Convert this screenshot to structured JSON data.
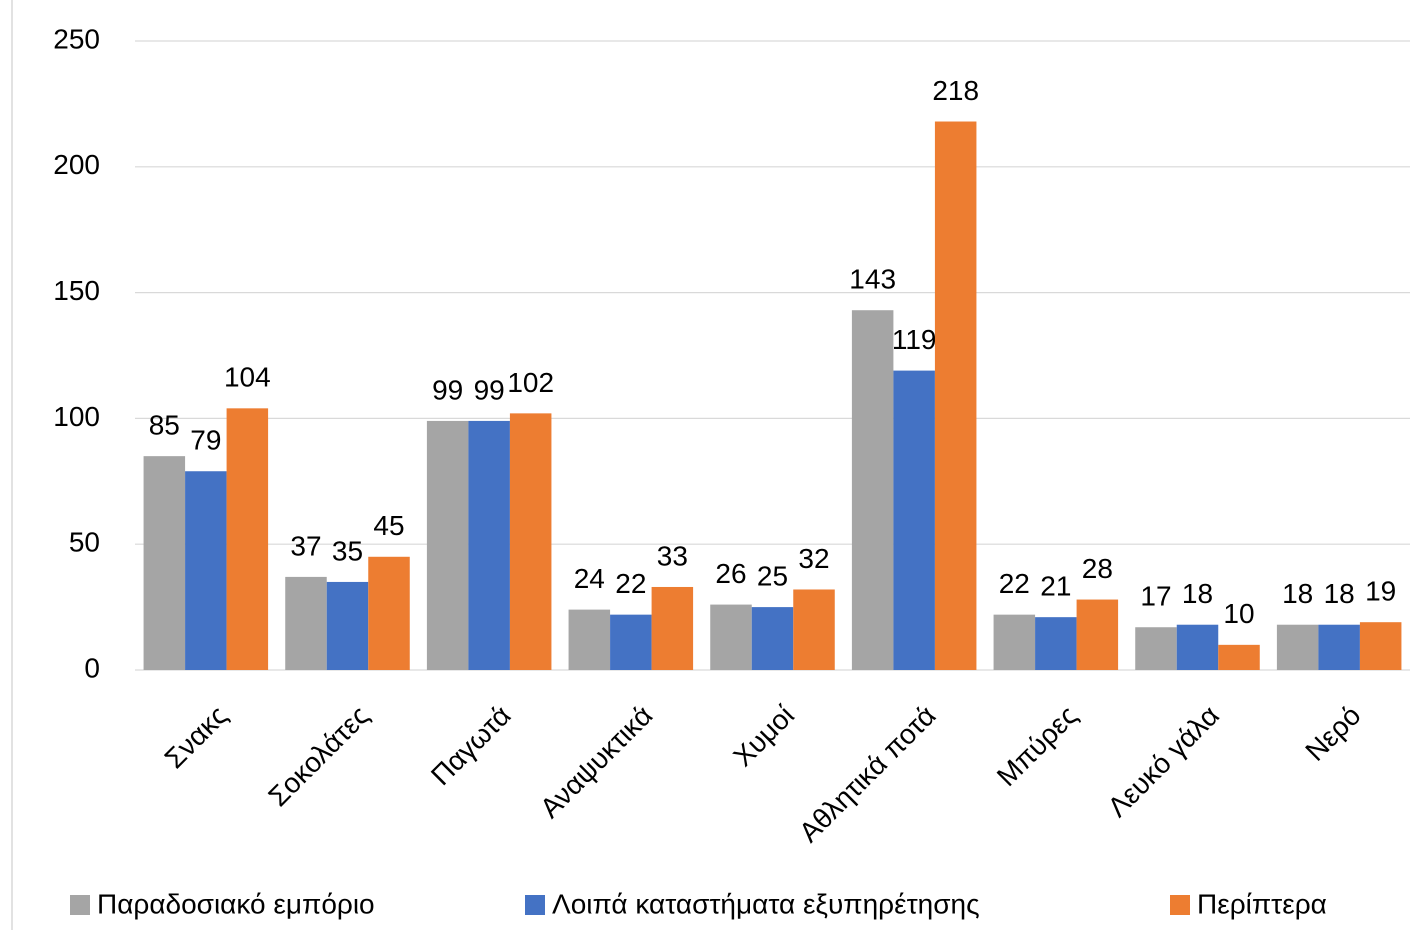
{
  "chart_data": {
    "type": "bar",
    "categories": [
      "Σνακς",
      "Σοκολάτες",
      "Παγωτά",
      "Αναψυκτικά",
      "Χυμοί",
      "Αθλητικά ποτά",
      "Μπύρες",
      "Λευκό γάλα",
      "Νερό"
    ],
    "series": [
      {
        "name": "Παραδοσιακό εμπόριο",
        "color": "#a5a5a5",
        "values": [
          85,
          37,
          99,
          24,
          26,
          143,
          22,
          17,
          18
        ]
      },
      {
        "name": "Λοιπά καταστήματα εξυπηρέτησης",
        "color": "#4472c4",
        "values": [
          79,
          35,
          99,
          22,
          25,
          119,
          21,
          18,
          18
        ]
      },
      {
        "name": "Περίπτερα",
        "color": "#ed7d31",
        "values": [
          104,
          45,
          102,
          33,
          32,
          218,
          28,
          10,
          19
        ]
      }
    ],
    "ylim": [
      0,
      250
    ],
    "yticks": [
      0,
      50,
      100,
      150,
      200,
      250
    ],
    "grid": true,
    "legend": "bottom"
  }
}
